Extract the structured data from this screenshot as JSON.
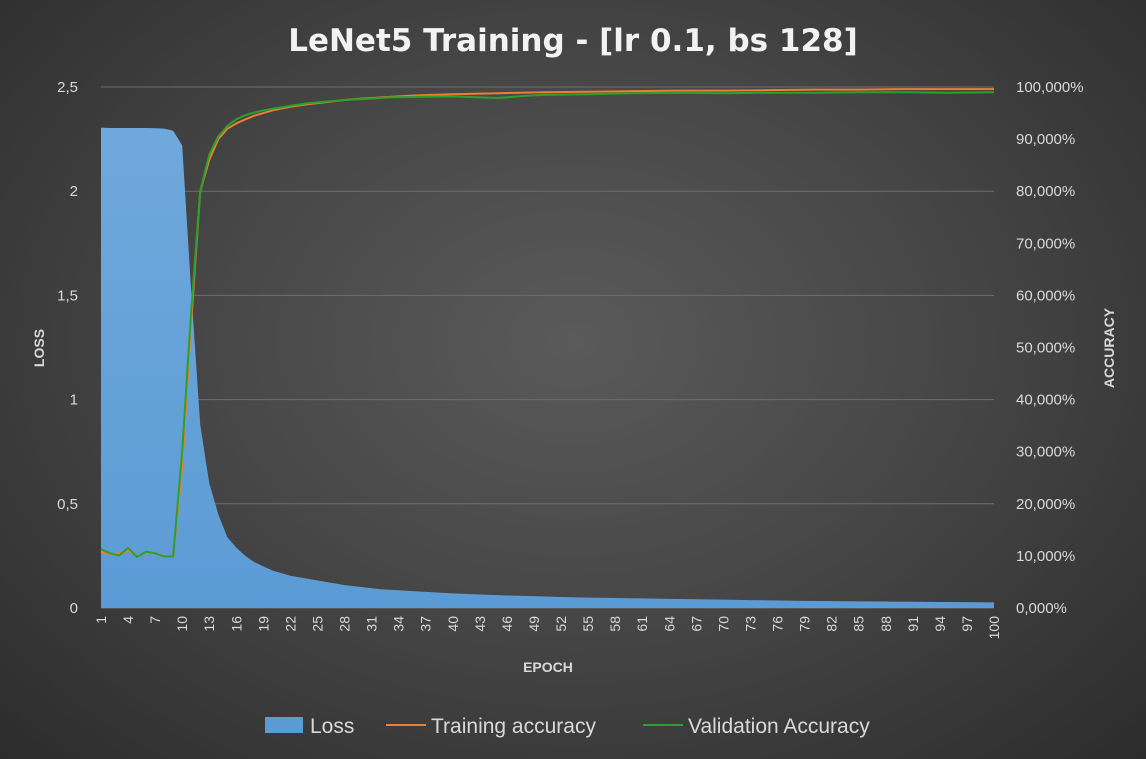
{
  "chart_data": {
    "type": "area",
    "title": "LeNet5 Training - [lr 0.1, bs 128]",
    "xlabel": "EPOCH",
    "ylabel": "LOSS",
    "y2label": "ACCURACY",
    "ylim": [
      0,
      2.5
    ],
    "y2lim": [
      0,
      100
    ],
    "yticks": [
      "0",
      "0,5",
      "1",
      "1,5",
      "2",
      "2,5"
    ],
    "y2ticks": [
      "0,000%",
      "10,000%",
      "20,000%",
      "30,000%",
      "40,000%",
      "50,000%",
      "60,000%",
      "70,000%",
      "80,000%",
      "90,000%",
      "100,000%"
    ],
    "xticks": [
      "1",
      "4",
      "7",
      "10",
      "13",
      "16",
      "19",
      "22",
      "25",
      "28",
      "31",
      "34",
      "37",
      "40",
      "43",
      "46",
      "49",
      "52",
      "55",
      "58",
      "61",
      "64",
      "67",
      "70",
      "73",
      "76",
      "79",
      "82",
      "85",
      "88",
      "91",
      "94",
      "97",
      "100"
    ],
    "grid": true,
    "legend_position": "bottom",
    "colors": {
      "loss": "#5b9bd5",
      "train": "#ed7d31",
      "val": "#2ca02c"
    },
    "series": [
      {
        "name": "Loss",
        "kind": "area",
        "axis": "left",
        "x": [
          1,
          2,
          3,
          4,
          5,
          6,
          7,
          8,
          9,
          10,
          11,
          12,
          13,
          14,
          15,
          16,
          17,
          18,
          19,
          20,
          22,
          24,
          26,
          28,
          30,
          32,
          34,
          36,
          38,
          40,
          43,
          46,
          49,
          52,
          55,
          58,
          61,
          64,
          67,
          70,
          73,
          76,
          79,
          82,
          85,
          88,
          91,
          94,
          97,
          100
        ],
        "values": [
          2.305,
          2.303,
          2.303,
          2.303,
          2.303,
          2.303,
          2.302,
          2.3,
          2.29,
          2.22,
          1.52,
          0.88,
          0.6,
          0.45,
          0.34,
          0.29,
          0.25,
          0.22,
          0.2,
          0.18,
          0.155,
          0.14,
          0.125,
          0.11,
          0.1,
          0.09,
          0.085,
          0.08,
          0.075,
          0.07,
          0.065,
          0.06,
          0.057,
          0.053,
          0.05,
          0.048,
          0.046,
          0.044,
          0.042,
          0.04,
          0.038,
          0.036,
          0.034,
          0.033,
          0.032,
          0.031,
          0.03,
          0.029,
          0.028,
          0.027
        ]
      },
      {
        "name": "Training accuracy",
        "kind": "line",
        "axis": "right",
        "x": [
          1,
          2,
          3,
          4,
          5,
          6,
          7,
          8,
          9,
          10,
          11,
          12,
          13,
          14,
          15,
          16,
          17,
          18,
          19,
          20,
          22,
          24,
          26,
          28,
          30,
          33,
          36,
          40,
          45,
          50,
          55,
          60,
          65,
          70,
          75,
          80,
          85,
          90,
          95,
          100
        ],
        "values": [
          10.8,
          10.3,
          10.5,
          11.0,
          10.0,
          10.6,
          10.5,
          10.0,
          9.9,
          27,
          55,
          80,
          86,
          90,
          92,
          93,
          93.8,
          94.5,
          95.0,
          95.5,
          96.2,
          96.7,
          97.1,
          97.5,
          97.8,
          98.1,
          98.4,
          98.6,
          98.8,
          99.0,
          99.1,
          99.2,
          99.3,
          99.3,
          99.4,
          99.5,
          99.5,
          99.6,
          99.6,
          99.6
        ]
      },
      {
        "name": "Validation Accuracy",
        "kind": "line",
        "axis": "right",
        "x": [
          1,
          2,
          3,
          4,
          5,
          6,
          7,
          8,
          9,
          10,
          11,
          12,
          13,
          14,
          15,
          16,
          17,
          18,
          19,
          20,
          22,
          24,
          26,
          28,
          30,
          33,
          36,
          40,
          43,
          45,
          48,
          50,
          55,
          60,
          65,
          70,
          75,
          80,
          85,
          90,
          95,
          100
        ],
        "values": [
          11.3,
          10.5,
          10.1,
          11.5,
          9.8,
          10.8,
          10.5,
          9.9,
          9.9,
          30,
          57,
          80,
          87,
          90.5,
          92.5,
          93.8,
          94.6,
          95.1,
          95.5,
          95.8,
          96.4,
          96.9,
          97.2,
          97.5,
          97.7,
          98.0,
          98.1,
          98.2,
          98.0,
          97.9,
          98.3,
          98.5,
          98.6,
          98.8,
          98.9,
          98.8,
          98.9,
          98.9,
          99.0,
          99.0,
          98.9,
          99.0
        ]
      }
    ]
  }
}
